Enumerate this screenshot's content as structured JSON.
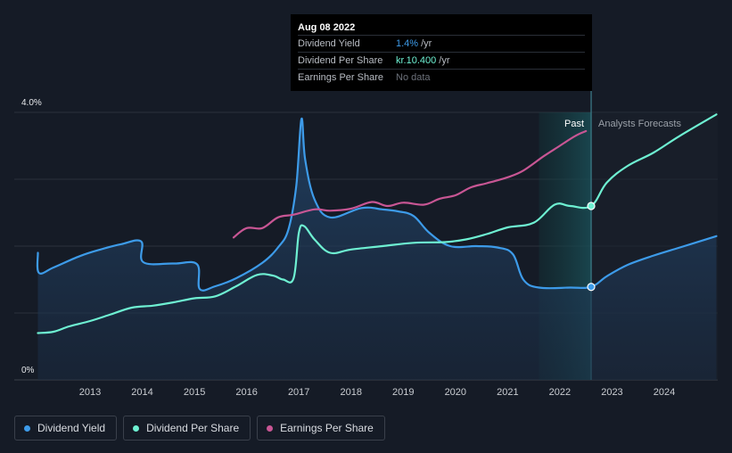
{
  "tooltip": {
    "date": "Aug 08 2022",
    "rows": [
      {
        "label": "Dividend Yield",
        "value": "1.4%",
        "unit": "/yr",
        "color": "#3d9be9"
      },
      {
        "label": "Dividend Per Share",
        "value": "kr.10.400",
        "unit": "/yr",
        "color": "#6ef0d2"
      },
      {
        "label": "Earnings Per Share",
        "value": "No data",
        "unit": "",
        "color": "#6c717a"
      }
    ]
  },
  "legend": [
    {
      "label": "Dividend Yield",
      "color": "#3d9be9"
    },
    {
      "label": "Dividend Per Share",
      "color": "#6ef0d2"
    },
    {
      "label": "Earnings Per Share",
      "color": "#c85694"
    }
  ],
  "chart_data": {
    "type": "line",
    "ylim": [
      0,
      4.0
    ],
    "y_tick_labels": [
      {
        "value": 4.0,
        "label": "4.0%"
      },
      {
        "value": 0,
        "label": "0%"
      }
    ],
    "xlim": [
      2012.0,
      2025.0
    ],
    "x_ticks": [
      2013,
      2014,
      2015,
      2016,
      2017,
      2018,
      2019,
      2020,
      2021,
      2022,
      2023,
      2024
    ],
    "past_label": "Past",
    "forecast_label": "Analysts Forecasts",
    "forecast_start": 2022.6,
    "past_band_start": 2021.6,
    "grid": true,
    "series": [
      {
        "name": "Dividend Yield",
        "color": "#3d9be9",
        "fill": true,
        "points": [
          [
            2012.0,
            1.9
          ],
          [
            2012.02,
            1.6
          ],
          [
            2012.3,
            1.68
          ],
          [
            2012.8,
            1.85
          ],
          [
            2013.2,
            1.95
          ],
          [
            2013.6,
            2.03
          ],
          [
            2013.98,
            2.07
          ],
          [
            2014.02,
            1.76
          ],
          [
            2014.6,
            1.74
          ],
          [
            2015.05,
            1.73
          ],
          [
            2015.1,
            1.36
          ],
          [
            2015.4,
            1.4
          ],
          [
            2015.8,
            1.52
          ],
          [
            2016.3,
            1.75
          ],
          [
            2016.6,
            1.98
          ],
          [
            2016.8,
            2.25
          ],
          [
            2016.95,
            2.9
          ],
          [
            2017.05,
            3.9
          ],
          [
            2017.12,
            3.3
          ],
          [
            2017.3,
            2.7
          ],
          [
            2017.6,
            2.43
          ],
          [
            2018.2,
            2.57
          ],
          [
            2018.6,
            2.55
          ],
          [
            2018.9,
            2.52
          ],
          [
            2019.2,
            2.45
          ],
          [
            2019.5,
            2.2
          ],
          [
            2019.9,
            2.0
          ],
          [
            2020.4,
            2.0
          ],
          [
            2020.8,
            1.98
          ],
          [
            2021.1,
            1.88
          ],
          [
            2021.3,
            1.5
          ],
          [
            2021.6,
            1.38
          ],
          [
            2022.2,
            1.38
          ],
          [
            2022.6,
            1.39
          ],
          [
            2022.9,
            1.55
          ],
          [
            2023.3,
            1.72
          ],
          [
            2023.8,
            1.86
          ],
          [
            2024.3,
            1.98
          ],
          [
            2025.0,
            2.15
          ]
        ]
      },
      {
        "name": "Dividend Per Share",
        "color": "#6ef0d2",
        "fill": false,
        "points": [
          [
            2012.0,
            0.7
          ],
          [
            2012.3,
            0.72
          ],
          [
            2012.6,
            0.8
          ],
          [
            2013.0,
            0.88
          ],
          [
            2013.4,
            0.98
          ],
          [
            2013.8,
            1.08
          ],
          [
            2014.2,
            1.11
          ],
          [
            2014.6,
            1.16
          ],
          [
            2015.0,
            1.22
          ],
          [
            2015.4,
            1.25
          ],
          [
            2015.8,
            1.4
          ],
          [
            2016.2,
            1.57
          ],
          [
            2016.5,
            1.56
          ],
          [
            2016.7,
            1.5
          ],
          [
            2016.9,
            1.52
          ],
          [
            2017.0,
            2.2
          ],
          [
            2017.1,
            2.3
          ],
          [
            2017.3,
            2.1
          ],
          [
            2017.6,
            1.9
          ],
          [
            2018.0,
            1.95
          ],
          [
            2018.6,
            2.0
          ],
          [
            2019.2,
            2.05
          ],
          [
            2019.8,
            2.06
          ],
          [
            2020.2,
            2.1
          ],
          [
            2020.6,
            2.18
          ],
          [
            2021.0,
            2.28
          ],
          [
            2021.5,
            2.35
          ],
          [
            2021.9,
            2.62
          ],
          [
            2022.2,
            2.6
          ],
          [
            2022.6,
            2.6
          ],
          [
            2022.9,
            2.95
          ],
          [
            2023.3,
            3.2
          ],
          [
            2023.8,
            3.4
          ],
          [
            2024.3,
            3.65
          ],
          [
            2025.0,
            3.97
          ]
        ]
      },
      {
        "name": "Earnings Per Share",
        "color": "#c85694",
        "fill": false,
        "points": [
          [
            2015.75,
            2.13
          ],
          [
            2016.0,
            2.27
          ],
          [
            2016.3,
            2.27
          ],
          [
            2016.6,
            2.43
          ],
          [
            2016.9,
            2.47
          ],
          [
            2017.3,
            2.55
          ],
          [
            2017.6,
            2.53
          ],
          [
            2018.0,
            2.56
          ],
          [
            2018.4,
            2.66
          ],
          [
            2018.7,
            2.6
          ],
          [
            2019.0,
            2.65
          ],
          [
            2019.4,
            2.62
          ],
          [
            2019.7,
            2.71
          ],
          [
            2020.0,
            2.76
          ],
          [
            2020.3,
            2.88
          ],
          [
            2020.6,
            2.94
          ],
          [
            2021.0,
            3.03
          ],
          [
            2021.3,
            3.13
          ],
          [
            2021.7,
            3.35
          ],
          [
            2022.0,
            3.5
          ],
          [
            2022.3,
            3.65
          ],
          [
            2022.5,
            3.72
          ]
        ]
      }
    ],
    "marker_points": [
      {
        "series": "Dividend Yield",
        "x": 2022.6,
        "y": 1.39
      },
      {
        "series": "Dividend Per Share",
        "x": 2022.6,
        "y": 2.6
      }
    ]
  }
}
